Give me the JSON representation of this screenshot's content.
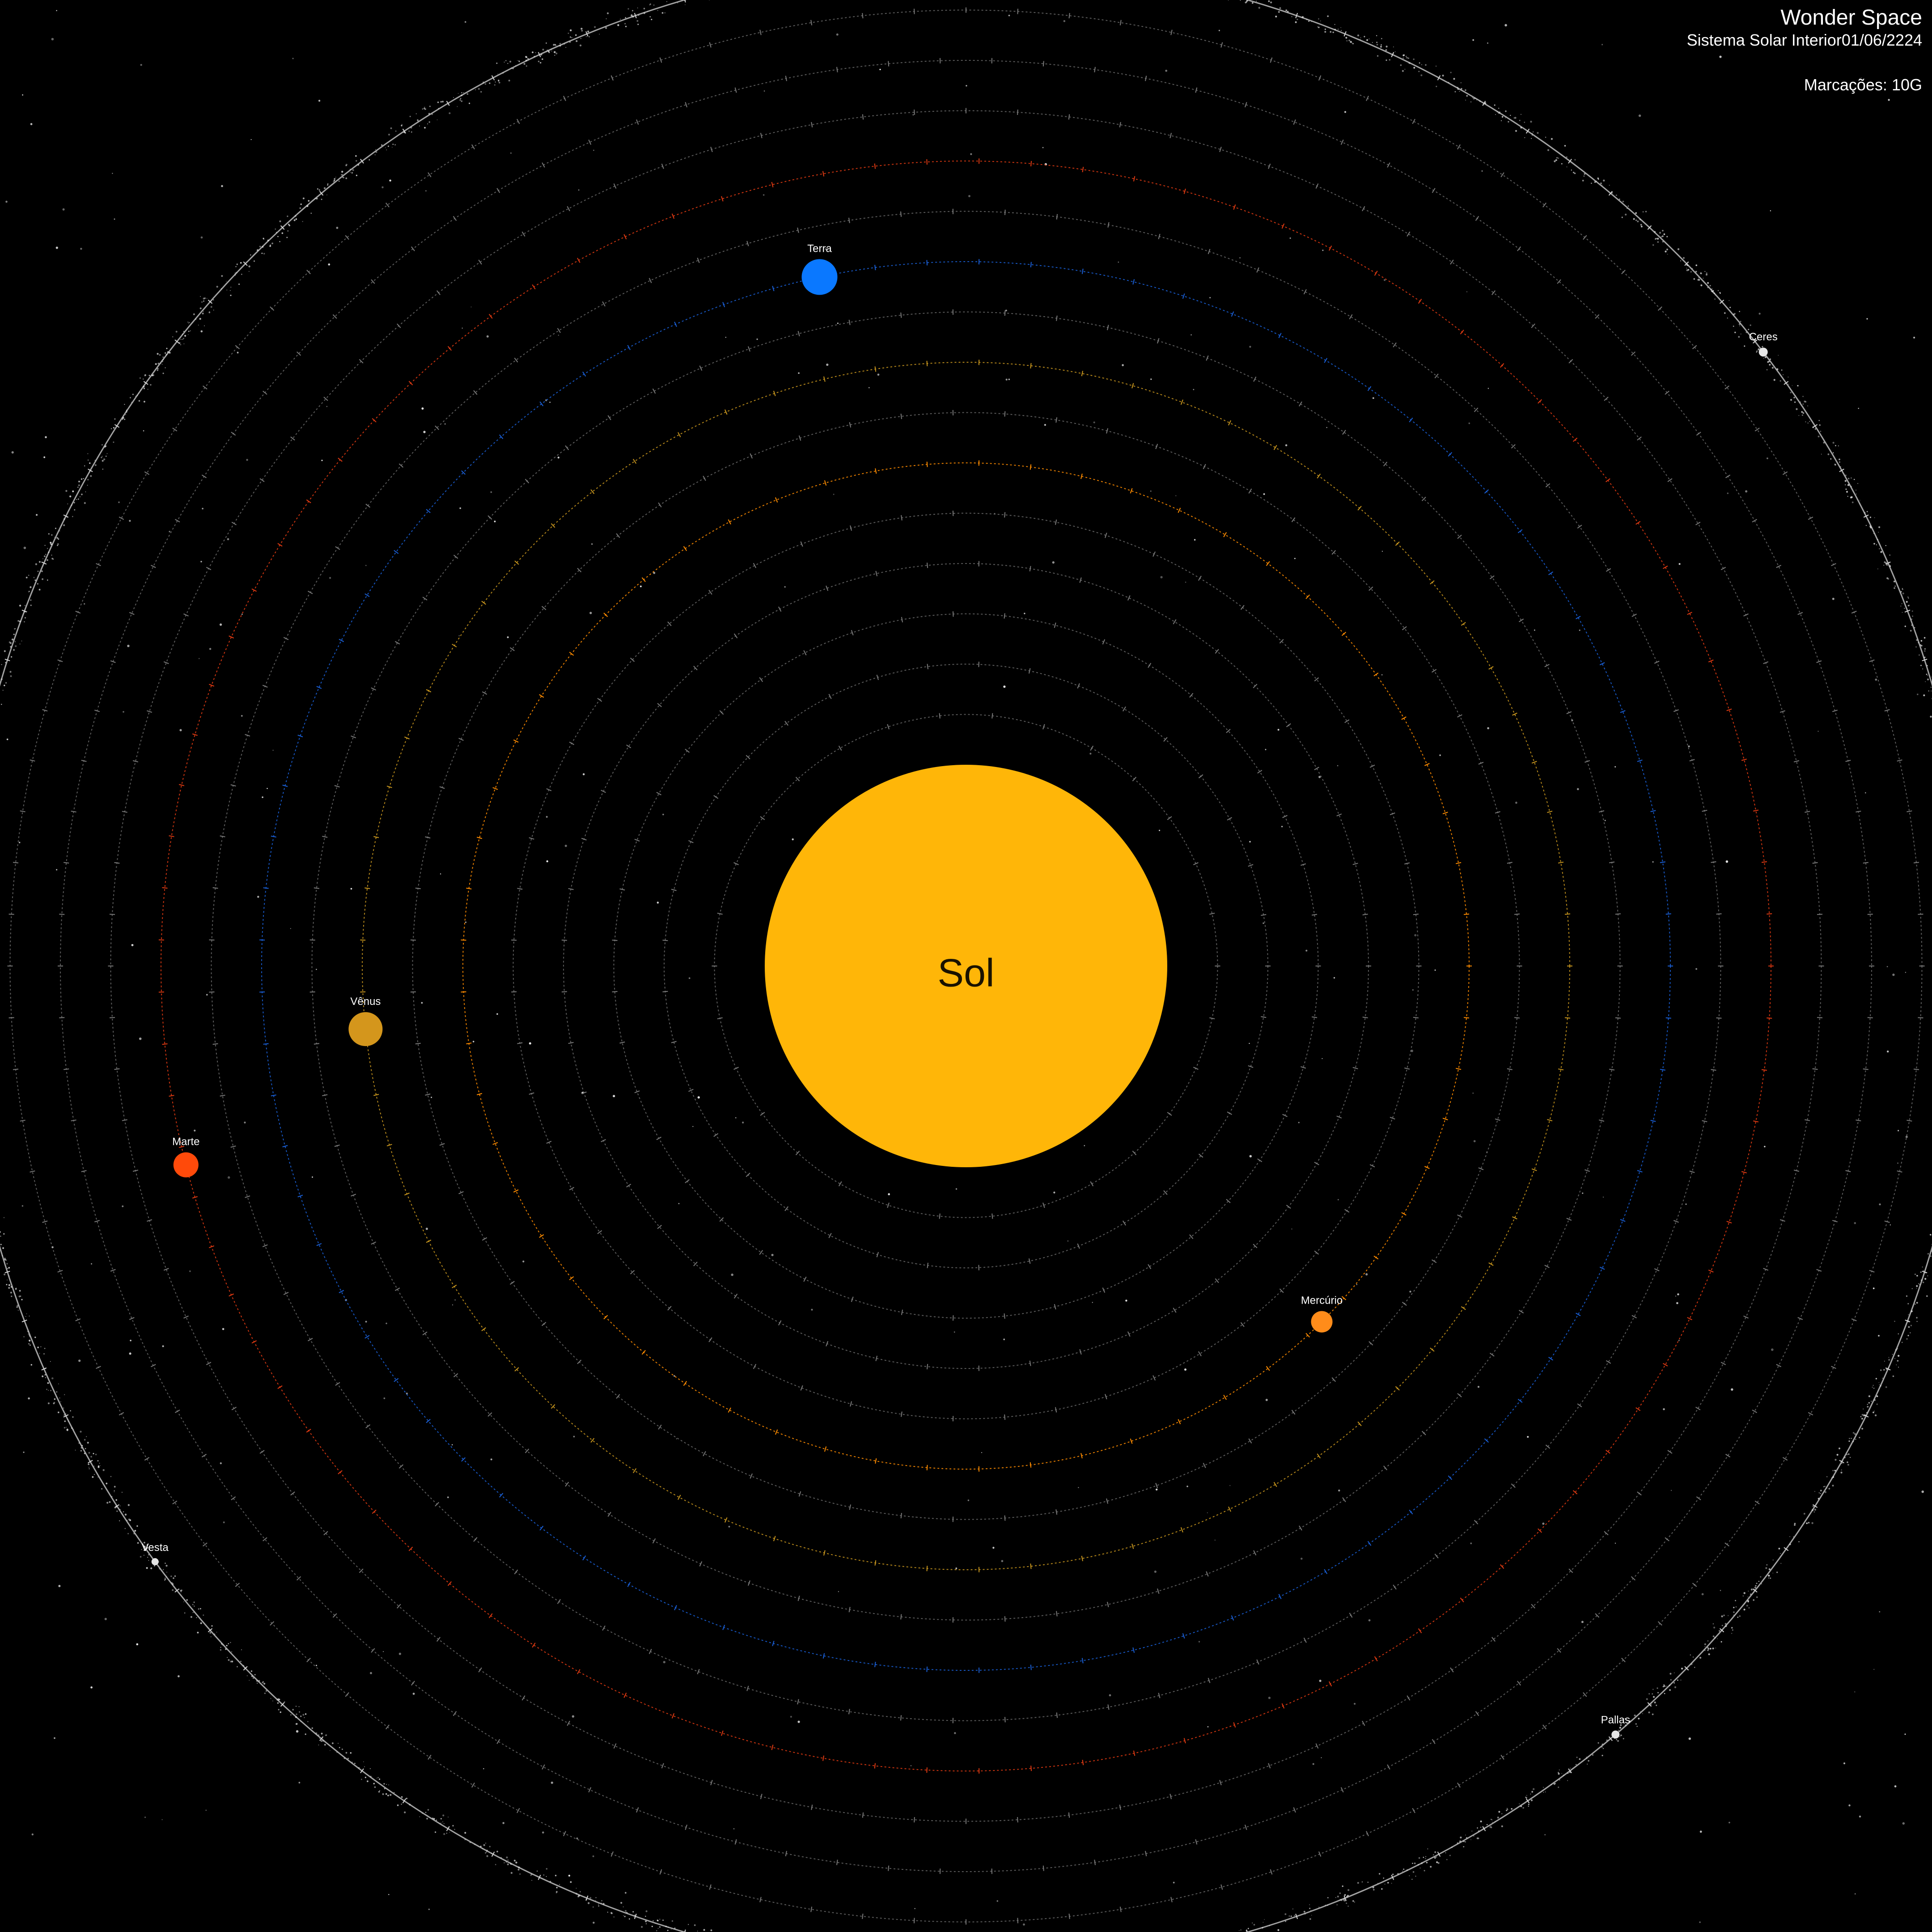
{
  "header": {
    "app_title": "Wonder Space",
    "subtitle": "Sistema Solar Interior",
    "date": "01/06/2224",
    "markings_label": "Marcações:",
    "markings_value": "10G"
  },
  "colors": {
    "background": "#000000",
    "sun": "#ffb608",
    "ring_neutral": "#7a7a7a",
    "ring_mercury": "#ff8c00",
    "ring_venus": "#c8961e",
    "ring_earth": "#1a5fd6",
    "ring_mars": "#e03a12",
    "belt": "#d8d8d8"
  },
  "sun": {
    "label": "Sol",
    "color": "#ffb608"
  },
  "bodies": [
    {
      "name": "Mercúrio",
      "kind": "planet",
      "color": "#ff8c1a",
      "ring_index": 6
    },
    {
      "name": "Vênus",
      "kind": "planet",
      "color": "#d4961c",
      "ring_index": 8
    },
    {
      "name": "Terra",
      "kind": "planet",
      "color": "#0a78ff",
      "ring_index": 10
    },
    {
      "name": "Marte",
      "kind": "planet",
      "color": "#ff4a0a",
      "ring_index": 12
    },
    {
      "name": "Ceres",
      "kind": "dwarf",
      "color": "#e6e6e6",
      "ring_index": 16
    },
    {
      "name": "Vesta",
      "kind": "dwarf",
      "color": "#e6e6e6",
      "ring_index": 16
    },
    {
      "name": "Pallas",
      "kind": "dwarf",
      "color": "#e6e6e6",
      "ring_index": 16
    }
  ]
}
